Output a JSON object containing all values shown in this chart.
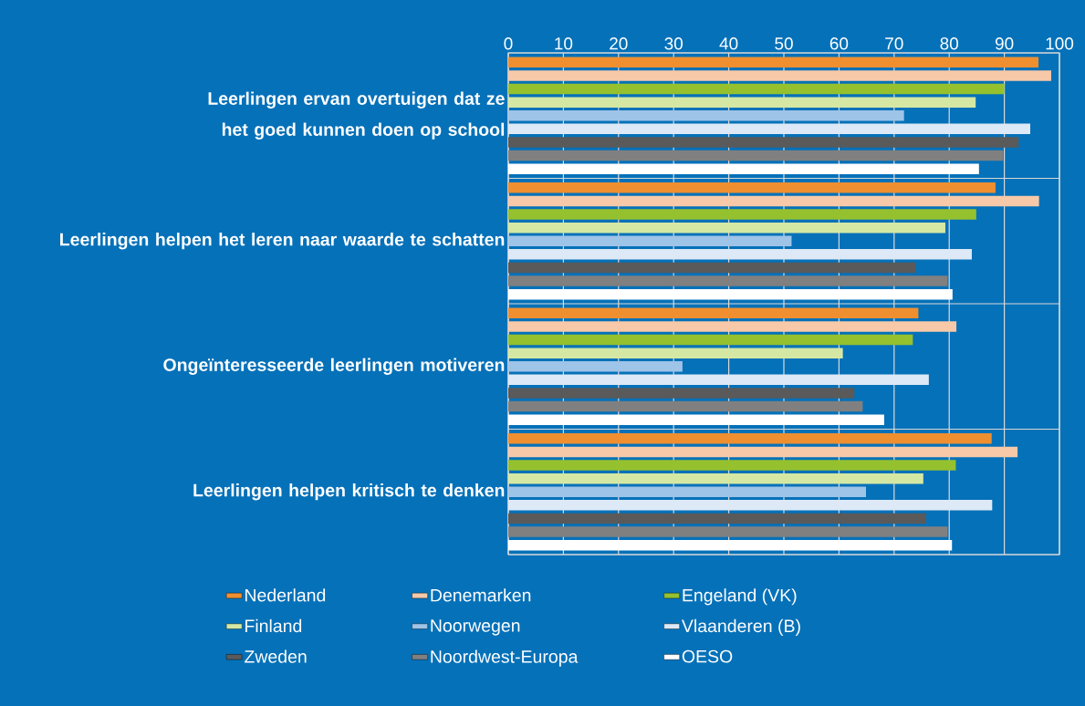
{
  "chart_data": {
    "type": "bar",
    "orientation": "horizontal",
    "categories": [
      "Leerlingen ervan overtuigen dat ze het goed kunnen doen op school",
      "Leerlingen helpen het leren naar waarde te schatten",
      "Ongeïnteresseerde leerlingen motiveren",
      "Leerlingen helpen kritisch te denken"
    ],
    "series": [
      {
        "name": "Nederland",
        "color": "#ef8f30",
        "values": [
          96.2,
          88.4,
          74.4,
          87.7
        ]
      },
      {
        "name": "Denemarken",
        "color": "#f7c9a8",
        "values": [
          98.5,
          96.3,
          81.3,
          92.4
        ]
      },
      {
        "name": "Engeland (VK)",
        "color": "#95c12f",
        "values": [
          90.0,
          84.9,
          73.4,
          81.2
        ]
      },
      {
        "name": "Finland",
        "color": "#d4e8a4",
        "values": [
          84.8,
          79.3,
          60.7,
          75.3
        ]
      },
      {
        "name": "Noorwegen",
        "color": "#9ec4e8",
        "values": [
          71.8,
          51.4,
          31.6,
          64.9
        ]
      },
      {
        "name": "Vlaanderen (B)",
        "color": "#dde9f6",
        "values": [
          94.7,
          84.1,
          76.3,
          87.8
        ]
      },
      {
        "name": "Zweden",
        "color": "#5a5a5a",
        "values": [
          92.6,
          73.9,
          62.8,
          75.8
        ]
      },
      {
        "name": "Noordwest-Europa",
        "color": "#808080",
        "values": [
          89.8,
          79.7,
          64.3,
          79.7
        ]
      },
      {
        "name": "OESO",
        "color": "#ffffff",
        "values": [
          85.4,
          80.6,
          68.2,
          80.5
        ]
      }
    ],
    "xlim": [
      0,
      100
    ],
    "xticks": [
      0,
      10,
      20,
      30,
      40,
      50,
      60,
      70,
      80,
      90,
      100
    ],
    "grid": "x",
    "legend": "bottom"
  }
}
